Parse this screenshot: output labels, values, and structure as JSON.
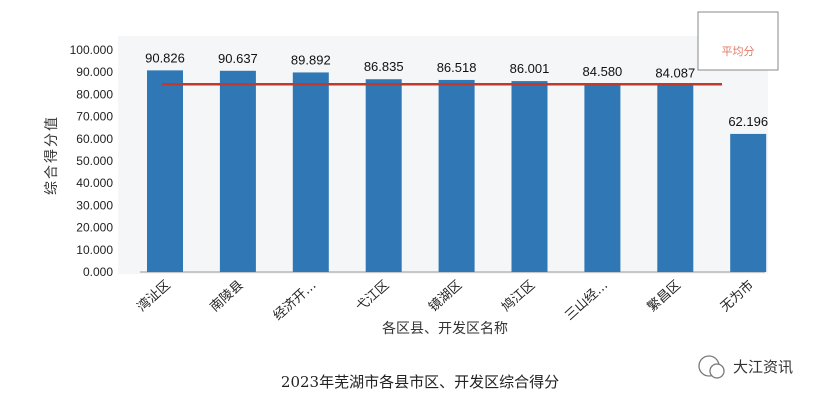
{
  "chart_data": {
    "type": "bar",
    "title": "2023年芜湖市各县市区、开发区综合得分",
    "xlabel": "各区县、开发区名称",
    "ylabel": "综合得分值",
    "ylim": [
      0,
      100
    ],
    "yticks": [
      "0.000",
      "10.000",
      "20.000",
      "30.000",
      "40.000",
      "50.000",
      "60.000",
      "70.000",
      "80.000",
      "90.000",
      "100.000"
    ],
    "categories": [
      "湾沚区",
      "南陵县",
      "经济开…",
      "弋江区",
      "镜湖区",
      "鸠江区",
      "三山经…",
      "繁昌区",
      "无为市"
    ],
    "values": [
      90.826,
      90.637,
      89.892,
      86.835,
      86.518,
      86.001,
      84.58,
      84.087,
      62.196
    ],
    "value_labels": [
      "90.826",
      "90.637",
      "89.892",
      "86.835",
      "86.518",
      "86.001",
      "84.580",
      "84.087",
      "62.196"
    ],
    "bar_color": "#2f78b5",
    "average": {
      "label": "平均分",
      "value": 84.6,
      "color": "#c0392b"
    },
    "legend_position": "top-right",
    "grid": false
  },
  "watermark": "大江资讯"
}
